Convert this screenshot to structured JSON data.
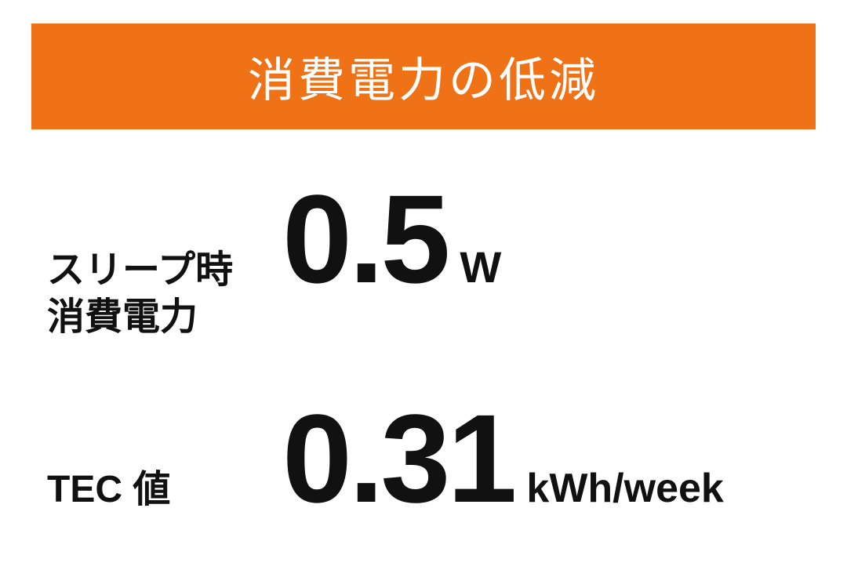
{
  "banner": {
    "text": "消費電力の低減",
    "bg_color": "#ef7216",
    "text_color": "#ffffff",
    "font_size": 60
  },
  "rows": [
    {
      "label": "スリープ時\n消費電力",
      "value": "0.5",
      "unit": "W",
      "label_font_size": 48,
      "value_font_size": 160,
      "unit_font_size": 56
    },
    {
      "label": "TEC 値",
      "value": "0.31",
      "unit": "kWh/week",
      "label_font_size": 48,
      "value_font_size": 160,
      "unit_font_size": 52
    }
  ],
  "colors": {
    "background": "#ffffff",
    "text": "#111111"
  }
}
